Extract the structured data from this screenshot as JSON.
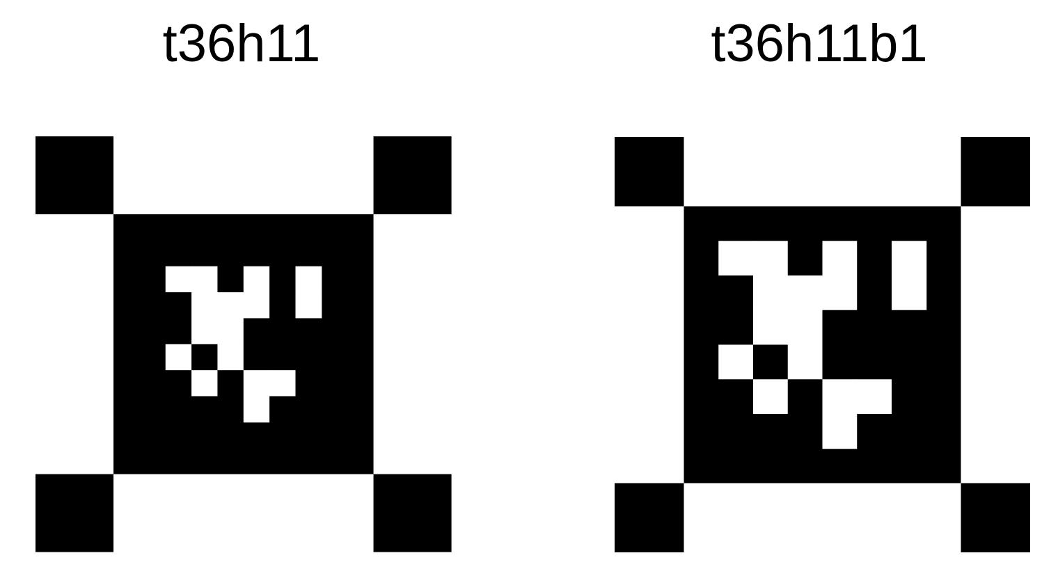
{
  "tags": [
    {
      "title": "t36h11"
    },
    {
      "title": "t36h11b1"
    }
  ]
}
